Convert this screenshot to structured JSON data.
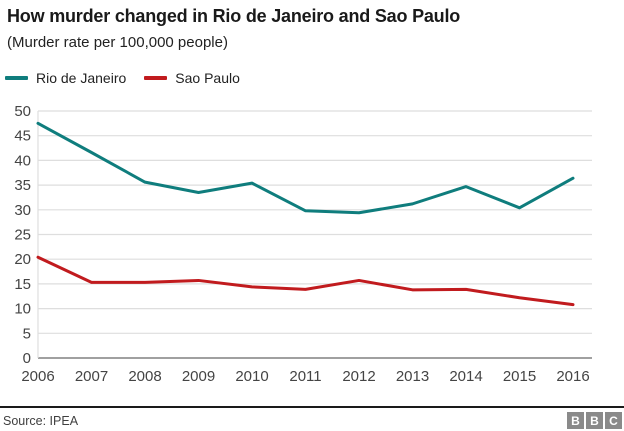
{
  "header": {
    "title": "How murder changed in Rio de Janeiro and Sao Paulo",
    "subtitle": "(Murder rate per 100,000 people)"
  },
  "legend": [
    {
      "label": "Rio de Janeiro",
      "color": "#0f7d7d"
    },
    {
      "label": "Sao Paulo",
      "color": "#c11b1e"
    }
  ],
  "chart_data": {
    "type": "line",
    "title": "How murder changed in Rio de Janeiro and Sao Paulo",
    "subtitle": "(Murder rate per 100,000 people)",
    "x": [
      2006,
      2007,
      2008,
      2009,
      2010,
      2011,
      2012,
      2013,
      2014,
      2015,
      2016
    ],
    "series": [
      {
        "name": "Rio de Janeiro",
        "color": "#0f7d7d",
        "values": [
          47.5,
          41.6,
          35.6,
          33.5,
          35.4,
          29.8,
          29.4,
          31.2,
          34.7,
          30.4,
          36.4
        ]
      },
      {
        "name": "Sao Paulo",
        "color": "#c11b1e",
        "values": [
          20.4,
          15.3,
          15.3,
          15.7,
          14.4,
          13.9,
          15.7,
          13.8,
          13.9,
          12.2,
          10.8
        ]
      }
    ],
    "xlabel": "",
    "ylabel": "",
    "ylim": [
      0,
      50
    ],
    "yticks": [
      0,
      5,
      10,
      15,
      20,
      25,
      30,
      35,
      40,
      45,
      50
    ],
    "grid": true,
    "legend_position": "top-left",
    "grid_color": "#dedede",
    "axis_line_color": "#808080",
    "tick_label_color": "#444444"
  },
  "footer": {
    "source": "Source: IPEA",
    "logo_letters": [
      "B",
      "B",
      "C"
    ]
  }
}
